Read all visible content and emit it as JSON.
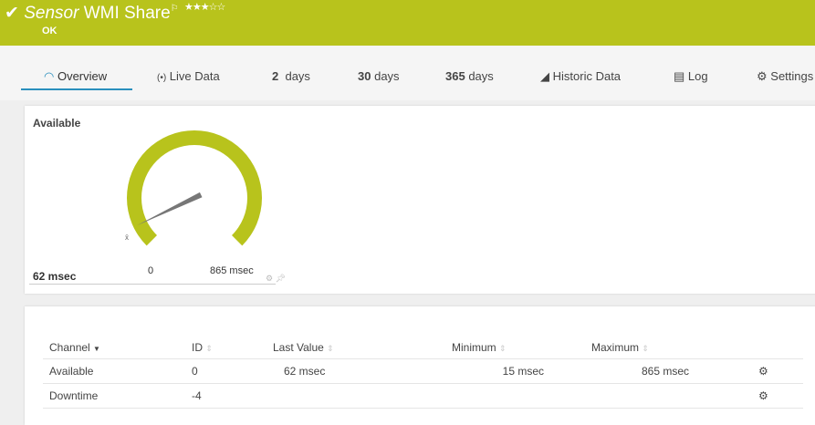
{
  "header": {
    "title_prefix": "Sensor",
    "title": "WMI Share",
    "flag_icon": "flag-icon",
    "stars": "★★★☆☆",
    "priority": 3,
    "status": "OK",
    "color": "#b8c31c"
  },
  "tabs": [
    {
      "label": "Overview",
      "icon": "gauge-icon",
      "active": true
    },
    {
      "label": "Live Data",
      "icon": "live-icon"
    },
    {
      "num": "2",
      "label": "days"
    },
    {
      "num": "30",
      "label": "days"
    },
    {
      "num": "365",
      "label": "days"
    },
    {
      "label": "Historic Data",
      "icon": "chart-icon"
    },
    {
      "label": "Log",
      "icon": "log-icon"
    },
    {
      "label": "Settings",
      "icon": "gear-icon"
    }
  ],
  "gauge": {
    "title": "Available",
    "value": "62 msec",
    "value_num": 62,
    "min": "0",
    "max": "865 msec",
    "max_num": 865,
    "avg_marker": "x̄"
  },
  "table": {
    "headers": [
      "Channel",
      "ID",
      "Last Value",
      "Minimum",
      "Maximum"
    ],
    "rows": [
      {
        "channel": "Available",
        "id": "0",
        "last": "62 msec",
        "min": "15 msec",
        "max": "865 msec"
      },
      {
        "channel": "Downtime",
        "id": "-4",
        "last": "",
        "min": "",
        "max": ""
      }
    ]
  }
}
